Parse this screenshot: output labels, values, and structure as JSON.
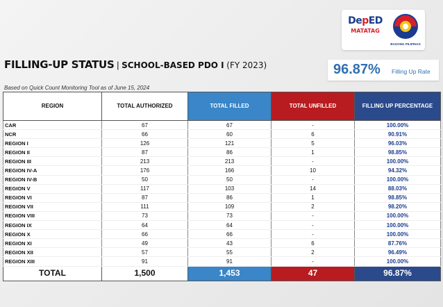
{
  "logos": {
    "deped_prefix": "De",
    "deped_e": "p",
    "deped_suffix": "ED",
    "matatag": "MATATAG",
    "bagong_pilipinas": "BAGONG PILIPINAS"
  },
  "title": {
    "main": "FILLING-UP STATUS",
    "separator": "|",
    "sub": "SCHOOL-BASED PDO I",
    "sub2": "(FY 2023)"
  },
  "basis": "Based on Quick Count Monitoring Tool as of June 15, 2024",
  "rate": {
    "value": "96.87%",
    "label": "Filling Up Rate"
  },
  "table": {
    "headers": [
      "REGION",
      "TOTAL AUTHORIZED",
      "TOTAL FILLED",
      "TOTAL UNFILLED",
      "FILLING UP PERCENTAGE"
    ],
    "rows": [
      [
        "CAR",
        "67",
        "67",
        "-",
        "100.00%"
      ],
      [
        "NCR",
        "66",
        "60",
        "6",
        "90.91%"
      ],
      [
        "REGION I",
        "126",
        "121",
        "5",
        "96.03%"
      ],
      [
        "REGION II",
        "87",
        "86",
        "1",
        "98.85%"
      ],
      [
        "REGION III",
        "213",
        "213",
        "-",
        "100.00%"
      ],
      [
        "REGION IV-A",
        "176",
        "166",
        "10",
        "94.32%"
      ],
      [
        "REGION IV-B",
        "50",
        "50",
        "-",
        "100.00%"
      ],
      [
        "REGION V",
        "117",
        "103",
        "14",
        "88.03%"
      ],
      [
        "REGION VI",
        "87",
        "86",
        "1",
        "98.85%"
      ],
      [
        "REGION VII",
        "111",
        "109",
        "2",
        "98.20%"
      ],
      [
        "REGION VIII",
        "73",
        "73",
        "-",
        "100.00%"
      ],
      [
        "REGION IX",
        "64",
        "64",
        "-",
        "100.00%"
      ],
      [
        "REGION X",
        "66",
        "66",
        "-",
        "100.00%"
      ],
      [
        "REGION XI",
        "49",
        "43",
        "6",
        "87.76%"
      ],
      [
        "REGION XII",
        "57",
        "55",
        "2",
        "96.49%"
      ],
      [
        "REGION XIII",
        "91",
        "91",
        "-",
        "100.00%"
      ]
    ],
    "total": [
      "TOTAL",
      "1,500",
      "1,453",
      "47",
      "96.87%"
    ]
  },
  "colors": {
    "blue": "#3a86c8",
    "red": "#b81c20",
    "navy": "#2b4a8c",
    "accent_text": "#2f6fb2"
  }
}
